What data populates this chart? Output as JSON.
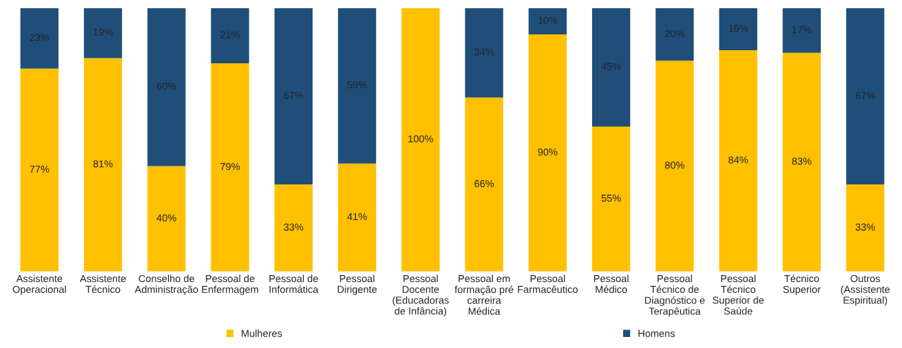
{
  "chart_data": {
    "type": "bar",
    "stacked": true,
    "categories": [
      "Assistente\nOperacional",
      "Assistente\nTécnico",
      "Conselho de\nAdministração",
      "Pessoal de\nEnfermagem",
      "Pessoal de\nInformática",
      "Pessoal\nDirigente",
      "Pessoal\nDocente\n(Educadoras\nde Infância)",
      "Pessoal em\nformação pré\ncarreira\nMédica",
      "Pessoal\nFarmacêutico",
      "Pessoal\nMédico",
      "Pessoal\nTécnico de\nDiagnóstico e\nTerapêutica",
      "Pessoal\nTécnico\nSuperior de\nSaúde",
      "Técnico\nSuperior",
      "Outros\n(Assistente\nEspiritual)"
    ],
    "series": [
      {
        "name": "Mulheres",
        "color": "#ffc000",
        "values": [
          77,
          81,
          40,
          79,
          33,
          41,
          100,
          66,
          90,
          55,
          80,
          84,
          83,
          33
        ],
        "value_labels": [
          "77%",
          "81%",
          "40%",
          "79%",
          "33%",
          "41%",
          "100%",
          "66%",
          "90%",
          "55%",
          "80%",
          "84%",
          "83%",
          "33%"
        ]
      },
      {
        "name": "Homens",
        "color": "#1f4e79",
        "values": [
          23,
          19,
          60,
          21,
          67,
          59,
          null,
          34,
          10,
          45,
          20,
          16,
          17,
          67
        ],
        "value_labels": [
          "23%",
          "19%",
          "60%",
          "21%",
          "67%",
          "59%",
          null,
          "34%",
          "10%",
          "45%",
          "20%",
          "16%",
          "17%",
          "67%"
        ]
      }
    ],
    "legend": "bottom",
    "grid": false,
    "tick_labels": "x"
  }
}
